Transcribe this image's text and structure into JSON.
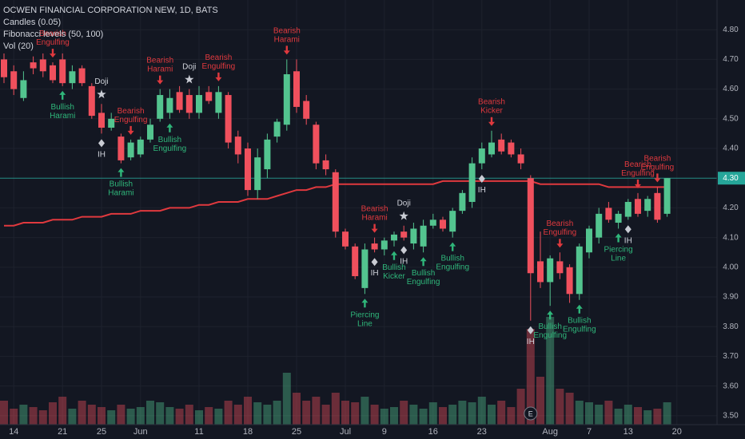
{
  "chart_data": {
    "type": "candlestick",
    "title": "OCWEN FINANCIAL CORPORATION NEW, 1D, BATS",
    "legend": [
      "Candles (0.05)",
      "Fibonacci levels (50, 100)",
      "Vol (20)"
    ],
    "categories": [
      null,
      "14",
      null,
      null,
      null,
      null,
      "21",
      null,
      null,
      null,
      "25",
      null,
      null,
      null,
      "Jun",
      null,
      null,
      null,
      null,
      null,
      "11",
      null,
      null,
      null,
      null,
      "18",
      null,
      null,
      null,
      null,
      "25",
      null,
      null,
      null,
      null,
      "Jul",
      null,
      null,
      null,
      "9",
      null,
      null,
      null,
      null,
      "16",
      null,
      null,
      null,
      null,
      "23",
      null,
      null,
      null,
      null,
      null,
      null,
      "Aug",
      null,
      null,
      null,
      "7",
      null,
      null,
      null,
      "13",
      null,
      null,
      null,
      null,
      "20"
    ],
    "open": [
      4.7,
      4.66,
      4.57,
      4.69,
      4.7,
      4.68,
      4.7,
      4.62,
      4.67,
      4.61,
      4.52,
      4.47,
      4.44,
      4.37,
      4.38,
      4.43,
      4.5,
      4.52,
      4.59,
      4.58,
      4.52,
      4.59,
      4.52,
      4.58,
      4.44,
      4.4,
      4.26,
      4.33,
      4.44,
      4.48,
      4.66,
      4.56,
      4.48,
      4.36,
      4.32,
      4.12,
      4.07,
      3.93,
      4.08,
      4.06,
      4.09,
      4.12,
      4.08,
      4.07,
      4.14,
      4.16,
      4.12,
      4.19,
      4.22,
      4.35,
      4.38,
      4.43,
      4.42,
      4.38,
      4.3,
      4.02,
      3.95,
      4.02,
      4.0,
      3.91,
      4.05,
      4.1,
      4.2,
      4.15,
      4.17,
      4.23,
      4.19,
      4.25,
      4.18,
      null
    ],
    "high": [
      4.72,
      4.68,
      4.66,
      4.71,
      4.72,
      4.69,
      4.72,
      4.68,
      4.68,
      4.62,
      4.55,
      4.52,
      4.45,
      4.43,
      4.44,
      4.5,
      4.6,
      4.6,
      4.61,
      4.6,
      4.61,
      4.61,
      4.61,
      4.59,
      4.46,
      4.42,
      4.4,
      4.45,
      4.5,
      4.7,
      4.7,
      4.58,
      4.49,
      4.38,
      4.33,
      4.13,
      4.08,
      4.08,
      4.1,
      4.1,
      4.12,
      4.14,
      4.15,
      4.16,
      4.18,
      4.17,
      4.2,
      4.26,
      4.37,
      4.42,
      4.46,
      4.45,
      4.43,
      4.4,
      4.31,
      4.12,
      4.04,
      4.05,
      4.01,
      4.08,
      4.14,
      4.2,
      4.22,
      4.19,
      4.23,
      4.25,
      4.24,
      4.27,
      4.3,
      null
    ],
    "low": [
      4.62,
      4.58,
      4.56,
      4.65,
      4.64,
      4.62,
      4.61,
      4.6,
      4.61,
      4.5,
      4.45,
      4.46,
      4.35,
      4.36,
      4.37,
      4.42,
      4.49,
      4.5,
      4.52,
      4.5,
      4.5,
      4.55,
      4.5,
      4.4,
      4.35,
      4.24,
      4.23,
      4.3,
      4.42,
      4.46,
      4.52,
      4.48,
      4.33,
      4.31,
      4.1,
      4.06,
      3.96,
      3.91,
      4.05,
      4.04,
      4.07,
      4.09,
      4.06,
      4.05,
      4.13,
      4.12,
      4.1,
      4.18,
      4.2,
      4.33,
      4.37,
      4.38,
      4.37,
      4.33,
      3.82,
      3.93,
      3.87,
      3.96,
      3.88,
      3.89,
      4.03,
      4.08,
      4.15,
      4.13,
      4.16,
      4.17,
      4.17,
      4.15,
      4.17,
      null
    ],
    "close": [
      4.64,
      4.6,
      4.63,
      4.67,
      4.66,
      4.63,
      4.62,
      4.66,
      4.62,
      4.51,
      4.47,
      4.5,
      4.36,
      4.42,
      4.43,
      4.48,
      4.58,
      4.57,
      4.53,
      4.52,
      4.58,
      4.56,
      4.59,
      4.42,
      4.38,
      4.26,
      4.37,
      4.43,
      4.49,
      4.65,
      4.54,
      4.5,
      4.35,
      4.33,
      4.12,
      4.07,
      3.97,
      4.06,
      4.06,
      4.09,
      4.11,
      4.1,
      4.13,
      4.14,
      4.16,
      4.13,
      4.19,
      4.25,
      4.35,
      4.4,
      4.42,
      4.39,
      4.38,
      4.35,
      3.98,
      3.95,
      4.03,
      3.98,
      3.91,
      4.07,
      4.13,
      4.18,
      4.16,
      4.18,
      4.22,
      4.18,
      4.23,
      4.16,
      4.3,
      null
    ],
    "volume": [
      30,
      20,
      25,
      22,
      18,
      28,
      35,
      20,
      30,
      25,
      22,
      18,
      25,
      20,
      22,
      30,
      28,
      22,
      20,
      25,
      18,
      22,
      20,
      30,
      25,
      35,
      28,
      25,
      30,
      65,
      40,
      30,
      35,
      25,
      40,
      30,
      28,
      35,
      25,
      20,
      22,
      30,
      25,
      20,
      28,
      22,
      25,
      30,
      28,
      35,
      25,
      30,
      22,
      45,
      120,
      60,
      135,
      45,
      40,
      30,
      28,
      25,
      30,
      20,
      25,
      22,
      18,
      20,
      28,
      null
    ],
    "up_color": "#53c48f",
    "down_color": "#f0505d",
    "ma": {
      "color": "#e0393e",
      "values": [
        4.14,
        4.14,
        4.15,
        4.15,
        4.15,
        4.16,
        4.16,
        4.16,
        4.17,
        4.17,
        4.17,
        4.18,
        4.18,
        4.18,
        4.19,
        4.19,
        4.19,
        4.2,
        4.2,
        4.2,
        4.21,
        4.21,
        4.22,
        4.22,
        4.22,
        4.23,
        4.23,
        4.23,
        4.24,
        4.25,
        4.26,
        4.26,
        4.27,
        4.27,
        4.28,
        4.28,
        4.28,
        4.28,
        4.28,
        4.28,
        4.28,
        4.28,
        4.28,
        4.28,
        4.28,
        4.29,
        4.29,
        4.29,
        4.29,
        4.29,
        4.29,
        4.29,
        4.29,
        4.29,
        4.29,
        4.28,
        4.28,
        4.28,
        4.28,
        4.28,
        4.28,
        4.28,
        4.27,
        4.27,
        4.27,
        4.27,
        4.27,
        4.27,
        4.27,
        null
      ]
    },
    "ylim": [
      3.47,
      4.9
    ],
    "yticks": [
      {
        "value": 3.5,
        "label": "3.50"
      },
      {
        "value": 3.6,
        "label": "3.60"
      },
      {
        "value": 3.7,
        "label": "3.70"
      },
      {
        "value": 3.8,
        "label": "3.80"
      },
      {
        "value": 3.9,
        "label": "3.90"
      },
      {
        "value": 4.0,
        "label": "4.00"
      },
      {
        "value": 4.1,
        "label": "4.10"
      },
      {
        "value": 4.2,
        "label": "4.20"
      },
      {
        "value": 4.3,
        "label": "4.30"
      },
      {
        "value": 4.4,
        "label": "4.40"
      },
      {
        "value": 4.5,
        "label": "4.50"
      },
      {
        "value": 4.6,
        "label": "4.60"
      },
      {
        "value": 4.7,
        "label": "4.70"
      },
      {
        "value": 4.8,
        "label": "4.80"
      }
    ],
    "grid": true,
    "last_price": {
      "value": 4.3,
      "label": "4.30",
      "color": "#26a69a"
    },
    "earnings": {
      "label": "E",
      "candle": 54
    },
    "annotations": [
      {
        "label": "Bearish Engulfing",
        "candle": 5,
        "marker": "arrow-down",
        "color": "#e0393e"
      },
      {
        "label": "Bullish Harami",
        "candle": 6,
        "marker": "arrow-up",
        "color": "#2fb67a"
      },
      {
        "label": "Doji",
        "candle": 10,
        "marker": "star",
        "color": "#d1d4dc"
      },
      {
        "label": "IH",
        "candle": 10,
        "marker": "diamond",
        "color": "#d1d4dc"
      },
      {
        "label": "Bullish Harami",
        "candle": 12,
        "marker": "arrow-up",
        "color": "#2fb67a"
      },
      {
        "label": "Bearish Engulfing",
        "candle": 13,
        "marker": "arrow-down",
        "color": "#e0393e"
      },
      {
        "label": "Bearish Harami",
        "candle": 16,
        "marker": "arrow-down",
        "color": "#e0393e"
      },
      {
        "label": "Bullish Engulfing",
        "candle": 17,
        "marker": "arrow-up",
        "color": "#2fb67a"
      },
      {
        "label": "Doji",
        "candle": 19,
        "marker": "star",
        "color": "#d1d4dc"
      },
      {
        "label": "Bearish Engulfing",
        "candle": 22,
        "marker": "arrow-down",
        "color": "#e0393e"
      },
      {
        "label": "Bearish Harami",
        "candle": 29,
        "marker": "arrow-down",
        "color": "#e0393e"
      },
      {
        "label": "Bearish Harami",
        "candle": 38,
        "marker": "arrow-down",
        "color": "#e0393e"
      },
      {
        "label": "Piercing Line",
        "candle": 37,
        "marker": "arrow-up",
        "color": "#2fb67a"
      },
      {
        "label": "IH",
        "candle": 38,
        "marker": "diamond",
        "color": "#d1d4dc"
      },
      {
        "label": "Doji",
        "candle": 41,
        "marker": "star",
        "color": "#d1d4dc"
      },
      {
        "label": "Bullish Kicker",
        "candle": 40,
        "marker": "arrow-up",
        "color": "#2fb67a"
      },
      {
        "label": "IH",
        "candle": 41,
        "marker": "diamond",
        "color": "#d1d4dc"
      },
      {
        "label": "Bullish Engulfing",
        "candle": 43,
        "marker": "arrow-up",
        "color": "#2fb67a"
      },
      {
        "label": "Bullish Engulfing",
        "candle": 46,
        "marker": "arrow-up",
        "color": "#2fb67a"
      },
      {
        "label": "IH",
        "candle": 49,
        "marker": "diamond",
        "color": "#d1d4dc"
      },
      {
        "label": "Bearish Kicker",
        "candle": 50,
        "marker": "arrow-down",
        "color": "#e0393e"
      },
      {
        "label": "IH",
        "candle": 54,
        "marker": "diamond",
        "color": "#d1d4dc"
      },
      {
        "label": "Bullish Engulfing",
        "candle": 56,
        "marker": "arrow-up",
        "color": "#2fb67a"
      },
      {
        "label": "Bearish Engulfing",
        "candle": 57,
        "marker": "arrow-down",
        "color": "#e0393e"
      },
      {
        "label": "Bullish Engulfing",
        "candle": 59,
        "marker": "arrow-up",
        "color": "#2fb67a"
      },
      {
        "label": "Piercing Line",
        "candle": 63,
        "marker": "arrow-up",
        "color": "#2fb67a"
      },
      {
        "label": "IH",
        "candle": 64,
        "marker": "diamond",
        "color": "#d1d4dc"
      },
      {
        "label": "Bearish Engulfing",
        "candle": 65,
        "marker": "arrow-down",
        "color": "#e0393e"
      },
      {
        "label": "Bearish Engulfing",
        "candle": 67,
        "marker": "arrow-down",
        "color": "#e0393e"
      }
    ]
  }
}
